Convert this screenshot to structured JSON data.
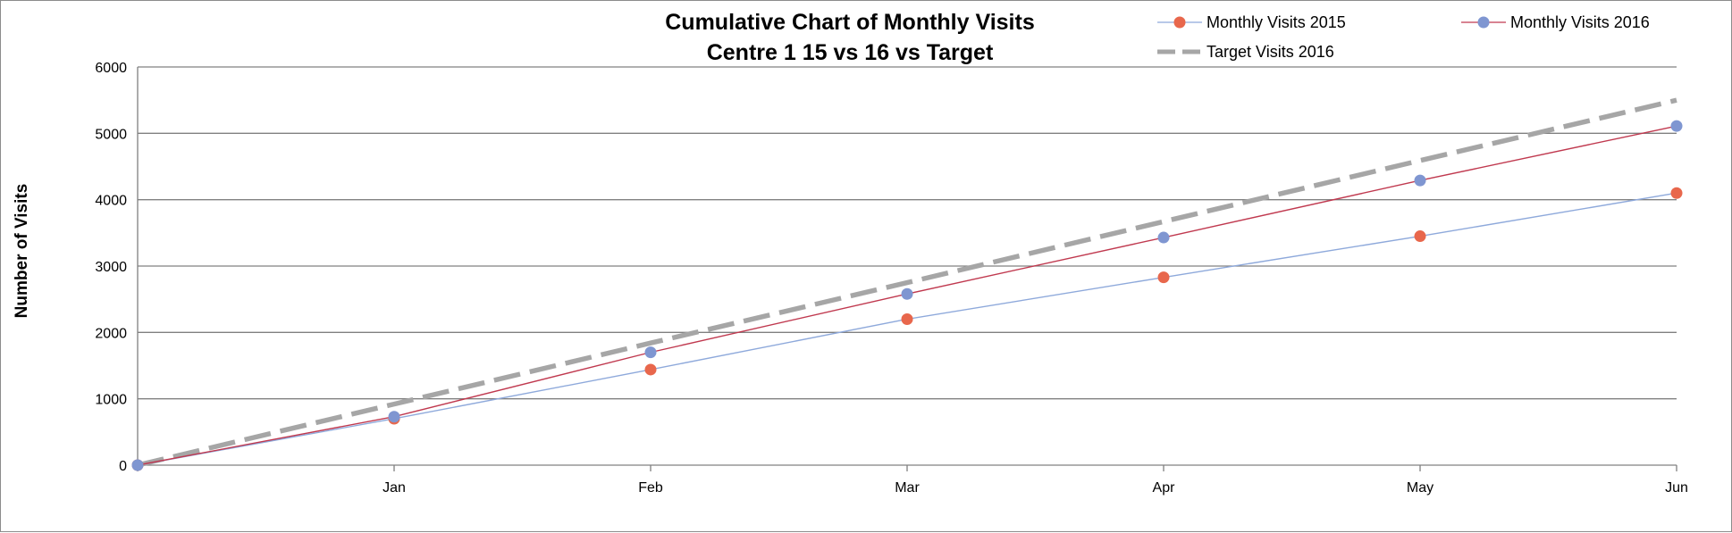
{
  "chart_data": {
    "type": "line",
    "title": "Cumulative Chart of Monthly Visits",
    "subtitle": "Centre 1 15 vs 16 vs Target",
    "xlabel": "",
    "ylabel": "Number of Visits",
    "categories": [
      "",
      "Jan",
      "Feb",
      "Mar",
      "Apr",
      "May",
      "Jun"
    ],
    "ylim": [
      0,
      6000
    ],
    "yticks": [
      "0",
      "1000",
      "2000",
      "3000",
      "4000",
      "5000",
      "6000"
    ],
    "grid": true,
    "legend_position": "top-right",
    "series": [
      {
        "name": "Monthly Visits 2015",
        "values": [
          0,
          700,
          1440,
          2200,
          2830,
          3450,
          4100
        ],
        "color": "#E8674C",
        "line_color": "#8EA9DB",
        "style": "solid-markers"
      },
      {
        "name": "Monthly Visits 2016",
        "values": [
          0,
          730,
          1700,
          2580,
          3430,
          4290,
          5110
        ],
        "color": "#7F96D1",
        "line_color": "#C0394F",
        "style": "solid-markers"
      },
      {
        "name": "Target Visits 2016",
        "values": [
          0,
          920,
          1840,
          2750,
          3670,
          4590,
          5500
        ],
        "color": "#A6A6A6",
        "line_color": "#A6A6A6",
        "style": "dashed"
      }
    ]
  }
}
